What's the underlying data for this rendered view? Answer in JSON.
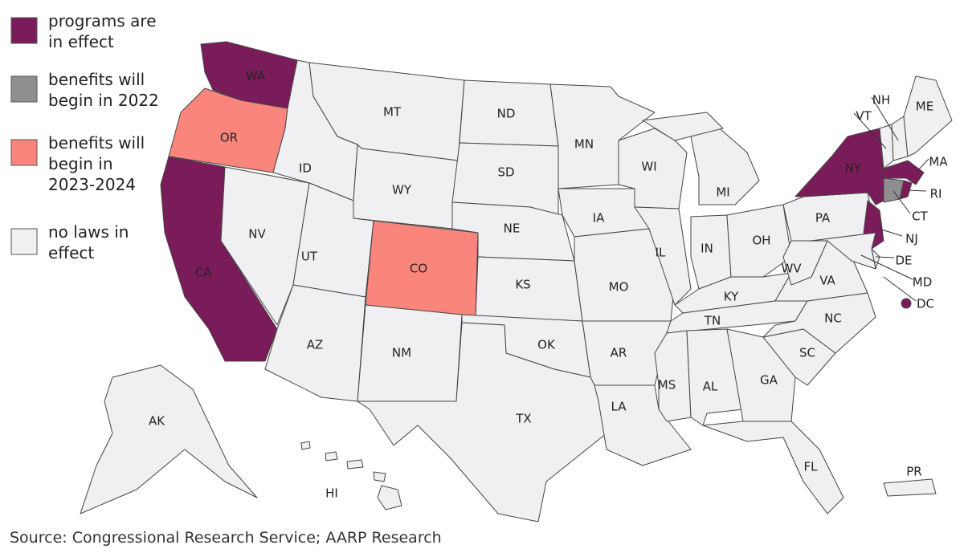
{
  "legend": [
    {
      "lines": [
        "programs are",
        "in effect"
      ],
      "color": "#7b1c5a"
    },
    {
      "lines": [
        "benefits will",
        "begin in 2022"
      ],
      "color": "#8e8e90"
    },
    {
      "lines": [
        "benefits will",
        "begin in",
        "2023-2024"
      ],
      "color": "#f9857c"
    },
    {
      "lines": [
        "no laws in",
        "effect"
      ],
      "color": "#f0f0f2"
    }
  ],
  "states": [
    {
      "label": "WA",
      "key": 0
    },
    {
      "label": "OR",
      "key": 2
    },
    {
      "label": "CA",
      "key": 0
    },
    {
      "label": "NV",
      "key": 3
    },
    {
      "label": "ID",
      "key": 3
    },
    {
      "label": "MT",
      "key": 3
    },
    {
      "label": "WY",
      "key": 3
    },
    {
      "label": "UT",
      "key": 3
    },
    {
      "label": "AZ",
      "key": 3
    },
    {
      "label": "CO",
      "key": 2
    },
    {
      "label": "NM",
      "key": 3
    },
    {
      "label": "ND",
      "key": 3
    },
    {
      "label": "SD",
      "key": 3
    },
    {
      "label": "NE",
      "key": 3
    },
    {
      "label": "KS",
      "key": 3
    },
    {
      "label": "OK",
      "key": 3
    },
    {
      "label": "TX",
      "key": 3
    },
    {
      "label": "MN",
      "key": 3
    },
    {
      "label": "IA",
      "key": 3
    },
    {
      "label": "MO",
      "key": 3
    },
    {
      "label": "AR",
      "key": 3
    },
    {
      "label": "LA",
      "key": 3
    },
    {
      "label": "WI",
      "key": 3
    },
    {
      "label": "IL",
      "key": 3
    },
    {
      "label": "MI",
      "key": 3
    },
    {
      "label": "IN",
      "key": 3
    },
    {
      "label": "OH",
      "key": 3
    },
    {
      "label": "KY",
      "key": 3
    },
    {
      "label": "TN",
      "key": 3
    },
    {
      "label": "MS",
      "key": 3
    },
    {
      "label": "AL",
      "key": 3
    },
    {
      "label": "GA",
      "key": 3
    },
    {
      "label": "FL",
      "key": 3
    },
    {
      "label": "SC",
      "key": 3
    },
    {
      "label": "NC",
      "key": 3
    },
    {
      "label": "VA",
      "key": 3
    },
    {
      "label": "WV",
      "key": 3
    },
    {
      "label": "PA",
      "key": 3
    },
    {
      "label": "NY",
      "key": 0
    },
    {
      "label": "NJ",
      "key": 0
    },
    {
      "label": "DE",
      "key": 3
    },
    {
      "label": "MD",
      "key": 3
    },
    {
      "label": "VT",
      "key": 3
    },
    {
      "label": "NH",
      "key": 3
    },
    {
      "label": "ME",
      "key": 3
    },
    {
      "label": "MA",
      "key": 0
    },
    {
      "label": "RI",
      "key": 0
    },
    {
      "label": "CT",
      "key": 1
    },
    {
      "label": "DC",
      "key": 0
    },
    {
      "label": "AK",
      "key": 3
    },
    {
      "label": "HI",
      "key": 3
    },
    {
      "label": "PR",
      "key": 3
    }
  ],
  "source": "Source: Congressional Research Service; AARP Research"
}
